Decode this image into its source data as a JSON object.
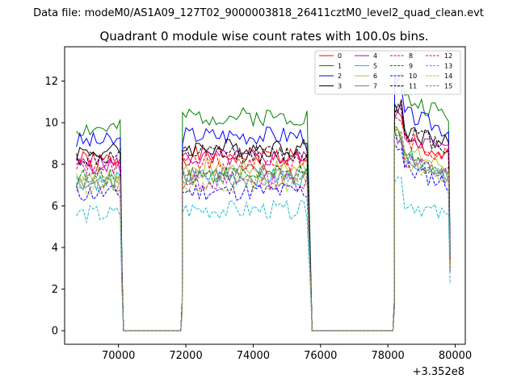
{
  "chart_data": {
    "type": "line",
    "suptitle": "Data file: modeM0/AS1A09_127T02_9000003818_26411cztM0_level2_quad_clean.evt",
    "title": "Quadrant 0 module wise count rates with 100.0s bins.",
    "xlabel": "",
    "ylabel": "",
    "x_offset_label": "+3.352e8",
    "xlim": [
      68400,
      80300
    ],
    "ylim": [
      -0.65,
      13.65
    ],
    "xticks": [
      70000,
      72000,
      74000,
      76000,
      78000,
      80000
    ],
    "xtick_labels": [
      "70000",
      "72000",
      "74000",
      "76000",
      "78000",
      "80000"
    ],
    "yticks": [
      0,
      2,
      4,
      6,
      8,
      10,
      12
    ],
    "ytick_labels": [
      "0",
      "2",
      "4",
      "6",
      "8",
      "10",
      "12"
    ],
    "legend_position": "top-right",
    "segments": [
      {
        "start": 68750,
        "end": 70000
      },
      {
        "start": 71900,
        "end": 75600
      },
      {
        "start": 78200,
        "end": 79750
      }
    ],
    "gap_value": 0,
    "bin_seconds": 100,
    "series": [
      {
        "name": "0",
        "color": "#ff0000",
        "dashed": false,
        "seg_levels": [
          8.2,
          8.4,
          9.3
        ]
      },
      {
        "name": "1",
        "color": "#008000",
        "dashed": false,
        "seg_levels": [
          9.7,
          10.3,
          11.3
        ]
      },
      {
        "name": "2",
        "color": "#0000ff",
        "dashed": false,
        "seg_levels": [
          9.1,
          9.4,
          10.6
        ]
      },
      {
        "name": "3",
        "color": "#000000",
        "dashed": false,
        "seg_levels": [
          8.6,
          8.8,
          9.9
        ]
      },
      {
        "name": "4",
        "color": "#bf00bf",
        "dashed": false,
        "seg_levels": [
          8.0,
          8.3,
          9.6
        ]
      },
      {
        "name": "5",
        "color": "#17becf",
        "dashed": false,
        "seg_levels": [
          7.2,
          7.4,
          8.6
        ]
      },
      {
        "name": "6",
        "color": "#bcbd22",
        "dashed": false,
        "seg_levels": [
          7.5,
          7.8,
          8.8
        ]
      },
      {
        "name": "7",
        "color": "#7f7f7f",
        "dashed": false,
        "seg_levels": [
          7.0,
          7.6,
          8.4
        ]
      },
      {
        "name": "8",
        "color": "#ff0000",
        "dashed": true,
        "seg_levels": [
          8.0,
          8.1,
          9.4
        ]
      },
      {
        "name": "9",
        "color": "#008000",
        "dashed": true,
        "seg_levels": [
          7.4,
          7.5,
          8.5
        ]
      },
      {
        "name": "10",
        "color": "#0000ff",
        "dashed": true,
        "seg_levels": [
          6.6,
          6.7,
          8.0
        ]
      },
      {
        "name": "11",
        "color": "#000000",
        "dashed": true,
        "seg_levels": [
          8.3,
          8.5,
          9.8
        ]
      },
      {
        "name": "12",
        "color": "#bf00bf",
        "dashed": true,
        "seg_levels": [
          7.9,
          7.2,
          8.4
        ]
      },
      {
        "name": "13",
        "color": "#17becf",
        "dashed": true,
        "seg_levels": [
          5.6,
          5.8,
          6.4
        ]
      },
      {
        "name": "14",
        "color": "#bcbd22",
        "dashed": true,
        "seg_levels": [
          7.0,
          7.1,
          8.3
        ]
      },
      {
        "name": "15",
        "color": "#7f7f7f",
        "dashed": true,
        "seg_levels": [
          7.1,
          7.3,
          8.5
        ]
      }
    ]
  }
}
